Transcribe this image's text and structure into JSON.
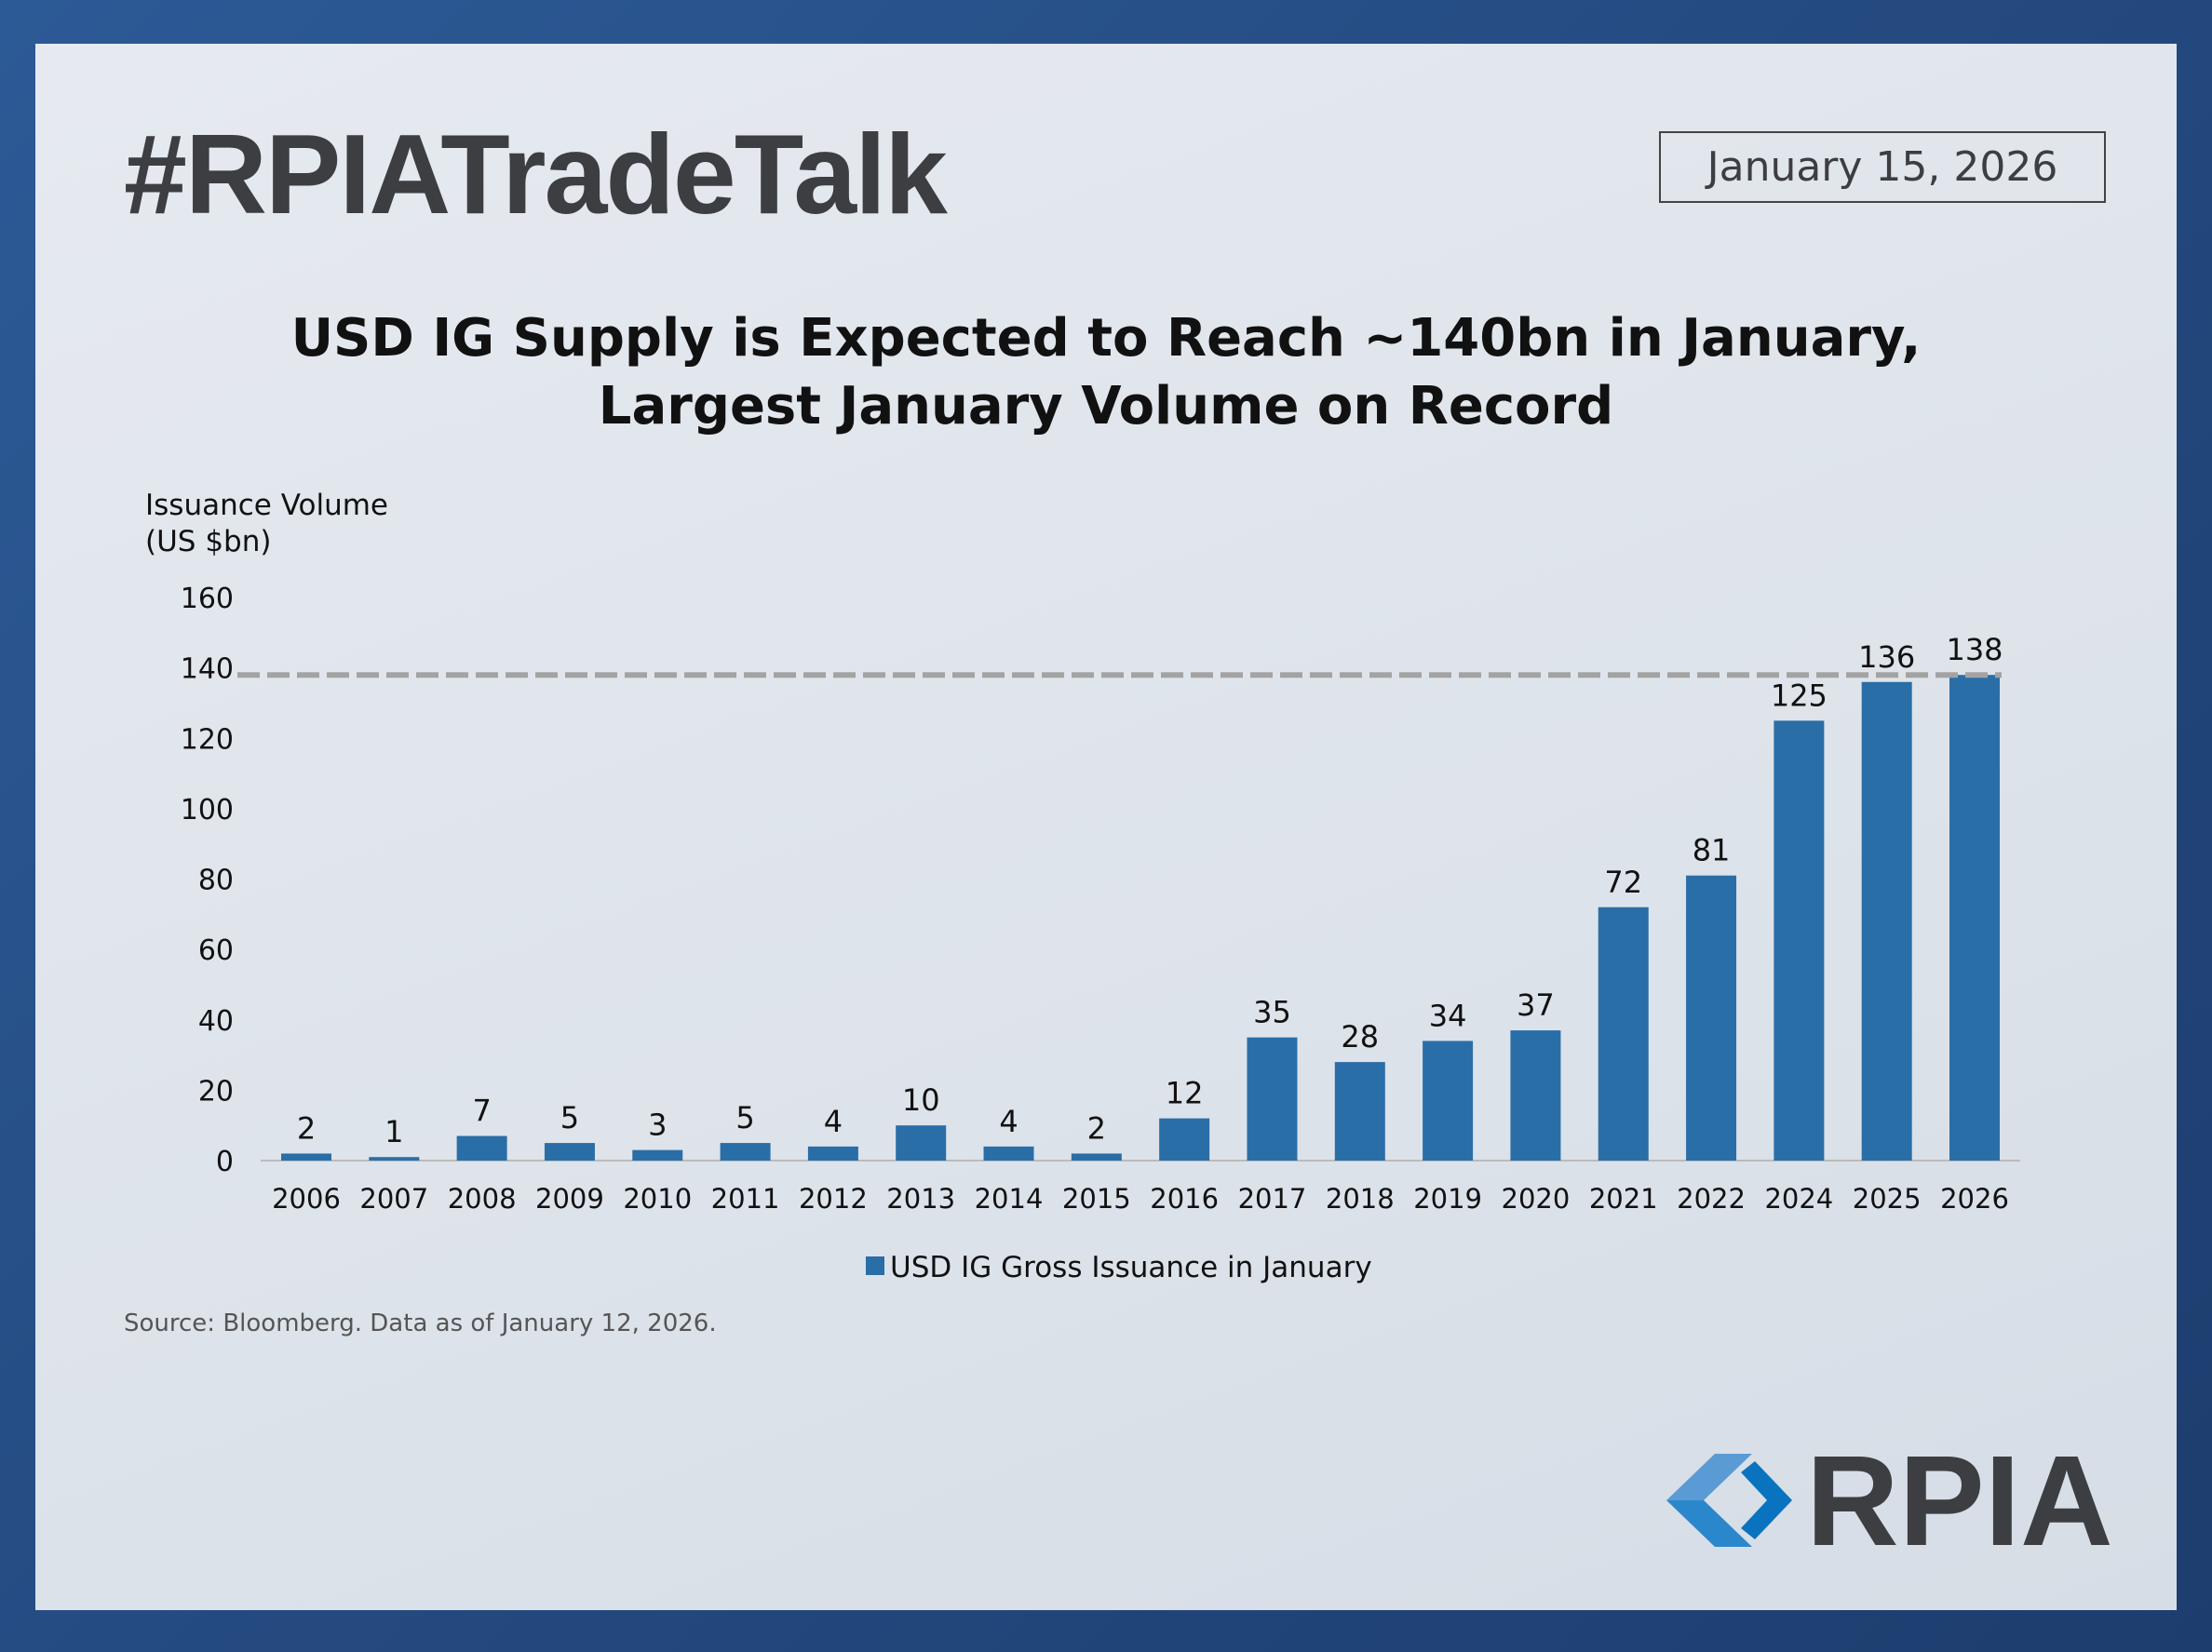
{
  "header": {
    "hashtag": "#RPIATradeTalk",
    "date": "January 15, 2026"
  },
  "chart_data": {
    "type": "bar",
    "title": "USD IG Supply is Expected to Reach ~140bn in January, Largest January Volume on Record",
    "title_lines": [
      "USD IG Supply is Expected to Reach ~140bn in January,",
      "Largest January Volume on Record"
    ],
    "ylabel_lines": [
      "Issuance Volume",
      "(US $bn)"
    ],
    "xlabel": "",
    "ylim": [
      0,
      160
    ],
    "yticks": [
      0,
      20,
      40,
      60,
      80,
      100,
      120,
      140,
      160
    ],
    "categories": [
      "2006",
      "2007",
      "2008",
      "2009",
      "2010",
      "2011",
      "2012",
      "2013",
      "2014",
      "2015",
      "2016",
      "2017",
      "2018",
      "2019",
      "2020",
      "2021",
      "2022",
      "2024",
      "2025",
      "2026"
    ],
    "series": [
      {
        "name": "USD IG Gross Issuance in January",
        "values": [
          2,
          1,
          7,
          5,
          3,
          5,
          4,
          10,
          4,
          2,
          12,
          35,
          28,
          34,
          37,
          72,
          81,
          125,
          136,
          138
        ]
      }
    ],
    "reference_line": {
      "value": 138,
      "style": "dashed"
    },
    "legend": "bottom-center",
    "grid": false,
    "colors": {
      "bar": "#2a6ea8",
      "reference": "#a3a3a3"
    }
  },
  "footer": {
    "source": "Source: Bloomberg. Data as of January 12, 2026.",
    "logo_text": "RPIA"
  }
}
